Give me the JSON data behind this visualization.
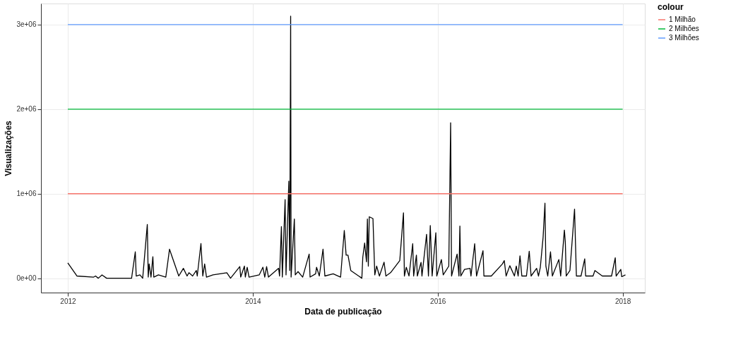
{
  "chart_data": {
    "type": "line",
    "xlabel": "Data de publicação",
    "ylabel": "Visualizações",
    "legend_title": "colour",
    "legend": "right",
    "grid": true,
    "marker": "none",
    "line_style": "solid",
    "xlim": [
      2011.71,
      2018.24
    ],
    "xticks": [
      2012,
      2014,
      2016,
      2018
    ],
    "ylim": [
      -170000,
      3250000
    ],
    "yticks": [
      {
        "value": 0,
        "label": "0e+00"
      },
      {
        "value": 1000000,
        "label": "1e+06"
      },
      {
        "value": 2000000,
        "label": "2e+06"
      },
      {
        "value": 3000000,
        "label": "3e+06"
      }
    ],
    "series": [
      {
        "color": "#000000",
        "x": [
          2012.0,
          2012.1,
          2012.28,
          2012.3,
          2012.33,
          2012.37,
          2012.42,
          2012.69,
          2012.73,
          2012.74,
          2012.78,
          2012.81,
          2012.86,
          2012.87,
          2012.88,
          2012.9,
          2012.92,
          2012.93,
          2012.98,
          2013.06,
          2013.1,
          2013.2,
          2013.25,
          2013.29,
          2013.31,
          2013.35,
          2013.39,
          2013.4,
          2013.44,
          2013.46,
          2013.48,
          2013.5,
          2013.57,
          2013.72,
          2013.76,
          2013.86,
          2013.87,
          2013.91,
          2013.92,
          2013.94,
          2013.96,
          2014.07,
          2014.11,
          2014.13,
          2014.15,
          2014.17,
          2014.28,
          2014.29,
          2014.31,
          2014.32,
          2014.35,
          2014.36,
          2014.39,
          2014.4,
          2014.41,
          2014.415,
          2014.45,
          2014.46,
          2014.49,
          2014.54,
          2014.61,
          2014.62,
          2014.68,
          2014.69,
          2014.72,
          2014.76,
          2014.78,
          2014.87,
          2014.95,
          2014.99,
          2015.01,
          2015.03,
          2015.06,
          2015.18,
          2015.19,
          2015.21,
          2015.23,
          2015.24,
          2015.25,
          2015.26,
          2015.3,
          2015.32,
          2015.34,
          2015.37,
          2015.42,
          2015.44,
          2015.49,
          2015.59,
          2015.63,
          2015.64,
          2015.66,
          2015.69,
          2015.73,
          2015.74,
          2015.77,
          2015.78,
          2015.82,
          2015.83,
          2015.88,
          2015.9,
          2015.92,
          2015.94,
          2015.98,
          2015.99,
          2016.04,
          2016.06,
          2016.12,
          2016.14,
          2016.15,
          2016.21,
          2016.23,
          2016.24,
          2016.25,
          2016.29,
          2016.35,
          2016.36,
          2016.4,
          2016.42,
          2016.49,
          2016.5,
          2016.58,
          2016.7,
          2016.72,
          2016.74,
          2016.78,
          2016.83,
          2016.85,
          2016.87,
          2016.89,
          2016.91,
          2016.96,
          2016.99,
          2017.01,
          2017.07,
          2017.09,
          2017.11,
          2017.14,
          2017.16,
          2017.17,
          2017.19,
          2017.22,
          2017.24,
          2017.31,
          2017.33,
          2017.37,
          2017.38,
          2017.39,
          2017.43,
          2017.48,
          2017.49,
          2017.5,
          2017.55,
          2017.59,
          2017.6,
          2017.68,
          2017.7,
          2017.78,
          2017.88,
          2017.92,
          2017.93,
          2017.98,
          2017.99,
          2018.03
        ],
        "values": [
          182000,
          26000,
          13000,
          26000,
          0,
          39000,
          0,
          0,
          312000,
          26000,
          39000,
          0,
          636000,
          13000,
          169000,
          13000,
          255000,
          13000,
          39000,
          13000,
          343000,
          26000,
          117000,
          26000,
          65000,
          26000,
          91000,
          26000,
          410000,
          26000,
          169000,
          13000,
          39000,
          65000,
          0,
          138000,
          13000,
          143000,
          13000,
          130000,
          13000,
          39000,
          130000,
          13000,
          138000,
          13000,
          117000,
          26000,
          610000,
          13000,
          930000,
          39000,
          1148000,
          91000,
          3100000,
          13000,
          701000,
          39000,
          78000,
          13000,
          286000,
          13000,
          52000,
          130000,
          26000,
          343000,
          26000,
          52000,
          13000,
          564000,
          273000,
          273000,
          91000,
          0,
          247000,
          416000,
          195000,
          701000,
          143000,
          727000,
          706000,
          39000,
          143000,
          26000,
          190000,
          26000,
          65000,
          208000,
          774000,
          26000,
          130000,
          26000,
          408000,
          26000,
          273000,
          26000,
          187000,
          26000,
          519000,
          26000,
          623000,
          26000,
          538000,
          26000,
          221000,
          39000,
          143000,
          1840000,
          26000,
          286000,
          26000,
          618000,
          26000,
          104000,
          117000,
          26000,
          408000,
          26000,
          325000,
          26000,
          26000,
          169000,
          208000,
          26000,
          148000,
          26000,
          143000,
          26000,
          265000,
          26000,
          26000,
          319000,
          26000,
          117000,
          26000,
          130000,
          486000,
          888000,
          143000,
          26000,
          312000,
          26000,
          221000,
          26000,
          569000,
          429000,
          26000,
          91000,
          818000,
          416000,
          26000,
          26000,
          229000,
          26000,
          26000,
          91000,
          26000,
          26000,
          242000,
          26000,
          104000,
          18000,
          39000
        ]
      },
      {
        "name": "1 Milhão",
        "color": "#F8766D",
        "x": [
          2012,
          2018
        ],
        "values": [
          1000000,
          1000000
        ]
      },
      {
        "name": "2 Milhões",
        "color": "#00BA38",
        "x": [
          2012,
          2018
        ],
        "values": [
          2000000,
          2000000
        ]
      },
      {
        "name": "3 Milhões",
        "color": "#619CFF",
        "x": [
          2012,
          2018
        ],
        "values": [
          3000000,
          3000000
        ]
      }
    ]
  }
}
